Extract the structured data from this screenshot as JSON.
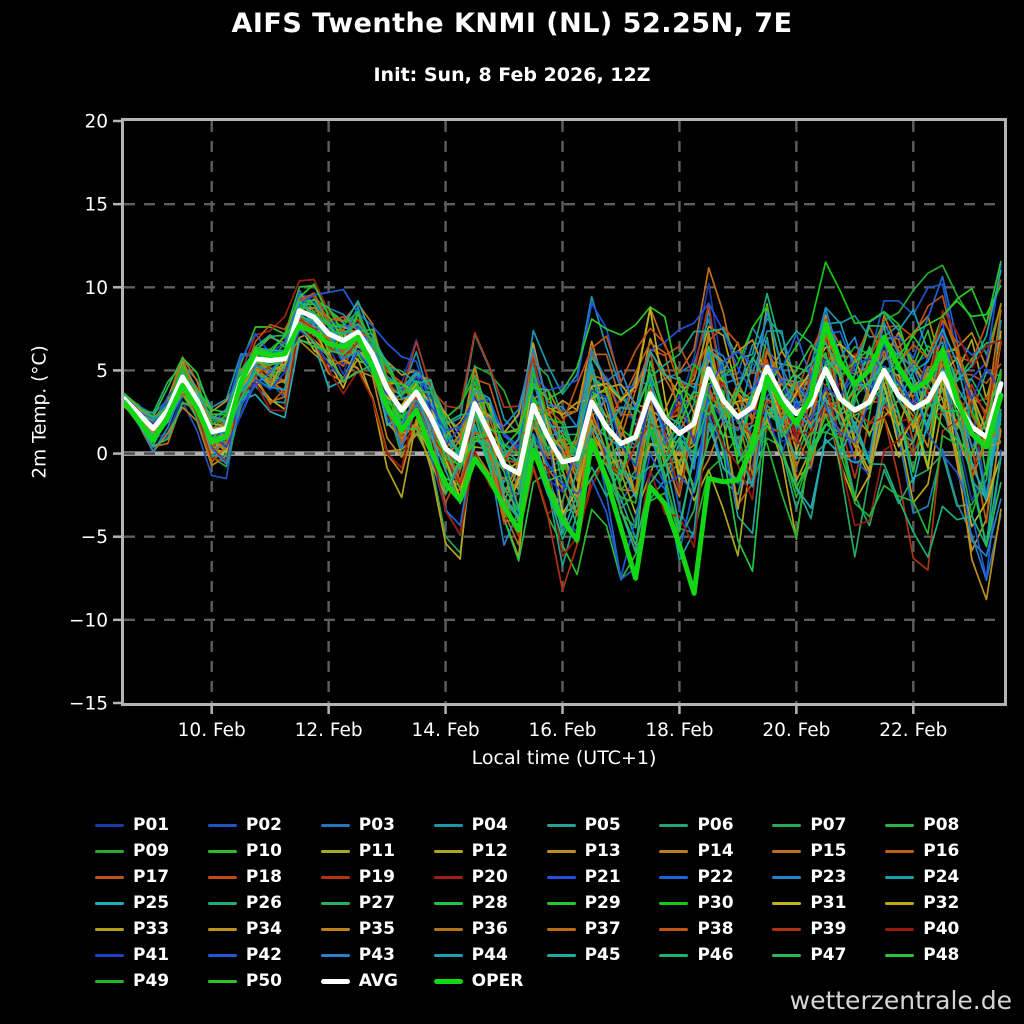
{
  "title": "AIFS Twenthe KNMI (NL) 52.25N, 7E",
  "subtitle": "Init: Sun, 8 Feb 2026, 12Z",
  "watermark": "wetterzentrale.de",
  "colors": {
    "background": "#000000",
    "frame": "#b4b4b4",
    "grid": "#5e5e5e",
    "zero_line": "#b0b0b0",
    "text": "#ffffff",
    "avg": "#ffffff",
    "oper": "#12d715"
  },
  "chart_data": {
    "type": "line",
    "title": "AIFS Twenthe KNMI (NL) 52.25N, 7E",
    "subtitle": "Init: Sun, 8 Feb 2026, 12Z",
    "xlabel": "Local time (UTC+1)",
    "ylabel": "2m Temp. (°C)",
    "ylim": [
      -15,
      20
    ],
    "yticks": [
      20,
      15,
      10,
      5,
      0,
      -5,
      -10,
      -15
    ],
    "ytick_labels": [
      "20",
      "15",
      "10",
      "5",
      "0",
      "−5",
      "−10",
      "−15"
    ],
    "grid": "dashed",
    "zero_line": true,
    "x_start": "8 Feb 2026 12:00",
    "x_days_total": 15,
    "time_step_hours": 6,
    "xtick_day_offsets": [
      1.5,
      3.5,
      5.5,
      7.5,
      9.5,
      11.5,
      13.5
    ],
    "xtick_labels": [
      "10. Feb",
      "12. Feb",
      "14. Feb",
      "16. Feb",
      "18. Feb",
      "20. Feb",
      "22. Feb"
    ],
    "series": [
      {
        "name": "AVG",
        "values": [
          3.3,
          2.4,
          1.5,
          2.6,
          4.6,
          3.2,
          1.3,
          1.5,
          4.4,
          5.7,
          5.6,
          5.7,
          8.6,
          8.2,
          7.2,
          6.8,
          7.3,
          6.0,
          3.9,
          2.6,
          3.7,
          2.2,
          0.3,
          -0.4,
          3.0,
          1.2,
          -0.7,
          -1.2,
          2.9,
          1.0,
          -0.5,
          -0.3,
          3.1,
          1.6,
          0.6,
          1.0,
          3.6,
          2.1,
          1.2,
          1.8,
          5.1,
          3.2,
          2.2,
          2.8,
          5.2,
          3.4,
          2.4,
          3.0,
          5.1,
          3.3,
          2.6,
          3.1,
          5.0,
          3.5,
          2.7,
          3.2,
          4.8,
          3.0,
          1.6,
          1.0,
          4.2
        ]
      },
      {
        "name": "OPER",
        "values": [
          3.1,
          2.0,
          0.8,
          2.2,
          4.1,
          2.7,
          0.7,
          1.0,
          4.3,
          6.1,
          5.9,
          6.0,
          7.7,
          7.3,
          6.6,
          6.4,
          7.0,
          5.2,
          2.8,
          1.4,
          2.6,
          0.2,
          -1.8,
          -2.8,
          -0.3,
          -1.5,
          -3.2,
          -4.6,
          0.2,
          -2.0,
          -4.0,
          -5.2,
          0.8,
          -1.5,
          -4.5,
          -7.5,
          -2.0,
          -3.0,
          -5.5,
          -8.4,
          -1.5,
          -1.7,
          -1.6,
          0.5,
          4.6,
          3.0,
          1.8,
          3.5,
          7.8,
          5.5,
          4.2,
          5.0,
          7.0,
          5.2,
          3.8,
          4.4,
          6.2,
          3.2,
          1.2,
          0.4,
          3.5
        ]
      }
    ],
    "ensemble": {
      "member_count": 50,
      "spread_daily": [
        0.5,
        1.6,
        2.0,
        2.0,
        2.4,
        3.0,
        3.5,
        4.5,
        5.5,
        5.5,
        6.2,
        6.5,
        6.0,
        6.0,
        6.8,
        7.5
      ]
    }
  },
  "legend": {
    "items": [
      {
        "label": "P01",
        "color": "#1c3ca8",
        "thick": false
      },
      {
        "label": "P02",
        "color": "#1e55c2",
        "thick": false
      },
      {
        "label": "P03",
        "color": "#2478bb",
        "thick": false
      },
      {
        "label": "P04",
        "color": "#1e95aa",
        "thick": false
      },
      {
        "label": "P05",
        "color": "#23a295",
        "thick": false
      },
      {
        "label": "P06",
        "color": "#26a276",
        "thick": false
      },
      {
        "label": "P07",
        "color": "#2aa65c",
        "thick": false
      },
      {
        "label": "P08",
        "color": "#2fb046",
        "thick": false
      },
      {
        "label": "P09",
        "color": "#23ab33",
        "thick": false
      },
      {
        "label": "P10",
        "color": "#2cbd2c",
        "thick": false
      },
      {
        "label": "P11",
        "color": "#a9a921",
        "thick": false
      },
      {
        "label": "P12",
        "color": "#b4a41c",
        "thick": false
      },
      {
        "label": "P13",
        "color": "#b9911e",
        "thick": false
      },
      {
        "label": "P14",
        "color": "#ba801b",
        "thick": false
      },
      {
        "label": "P15",
        "color": "#bc7019",
        "thick": false
      },
      {
        "label": "P16",
        "color": "#bb6117",
        "thick": false
      },
      {
        "label": "P17",
        "color": "#b95816",
        "thick": false
      },
      {
        "label": "P18",
        "color": "#c14d12",
        "thick": false
      },
      {
        "label": "P19",
        "color": "#b43513",
        "thick": false
      },
      {
        "label": "P20",
        "color": "#9d2012",
        "thick": false
      },
      {
        "label": "P21",
        "color": "#2150e0",
        "thick": false
      },
      {
        "label": "P22",
        "color": "#1f63d6",
        "thick": false
      },
      {
        "label": "P23",
        "color": "#2583cc",
        "thick": false
      },
      {
        "label": "P24",
        "color": "#1ba0ae",
        "thick": false
      },
      {
        "label": "P25",
        "color": "#1fadb9",
        "thick": false
      },
      {
        "label": "P26",
        "color": "#1fab82",
        "thick": false
      },
      {
        "label": "P27",
        "color": "#25b263",
        "thick": false
      },
      {
        "label": "P28",
        "color": "#24c245",
        "thick": false
      },
      {
        "label": "P29",
        "color": "#24ca2b",
        "thick": false
      },
      {
        "label": "P30",
        "color": "#16c816",
        "thick": false
      },
      {
        "label": "P31",
        "color": "#c2b41b",
        "thick": false
      },
      {
        "label": "P32",
        "color": "#bfa619",
        "thick": false
      },
      {
        "label": "P33",
        "color": "#b49d1b",
        "thick": false
      },
      {
        "label": "P34",
        "color": "#bd921c",
        "thick": false
      },
      {
        "label": "P35",
        "color": "#bc8118",
        "thick": false
      },
      {
        "label": "P36",
        "color": "#b37317",
        "thick": false
      },
      {
        "label": "P37",
        "color": "#bd6a16",
        "thick": false
      },
      {
        "label": "P38",
        "color": "#c25311",
        "thick": false
      },
      {
        "label": "P39",
        "color": "#ae3312",
        "thick": false
      },
      {
        "label": "P40",
        "color": "#9a1a0e",
        "thick": false
      },
      {
        "label": "P41",
        "color": "#1f42cc",
        "thick": false
      },
      {
        "label": "P42",
        "color": "#2059d4",
        "thick": false
      },
      {
        "label": "P43",
        "color": "#2781cd",
        "thick": false
      },
      {
        "label": "P44",
        "color": "#1aa2b2",
        "thick": false
      },
      {
        "label": "P45",
        "color": "#1fada0",
        "thick": false
      },
      {
        "label": "P46",
        "color": "#1cb179",
        "thick": false
      },
      {
        "label": "P47",
        "color": "#27ba58",
        "thick": false
      },
      {
        "label": "P48",
        "color": "#2cc23e",
        "thick": false
      },
      {
        "label": "P49",
        "color": "#22b62e",
        "thick": false
      },
      {
        "label": "P50",
        "color": "#2bc528",
        "thick": false
      },
      {
        "label": "AVG",
        "color": "#ffffff",
        "thick": true
      },
      {
        "label": "OPER",
        "color": "#12d715",
        "thick": true
      }
    ]
  }
}
